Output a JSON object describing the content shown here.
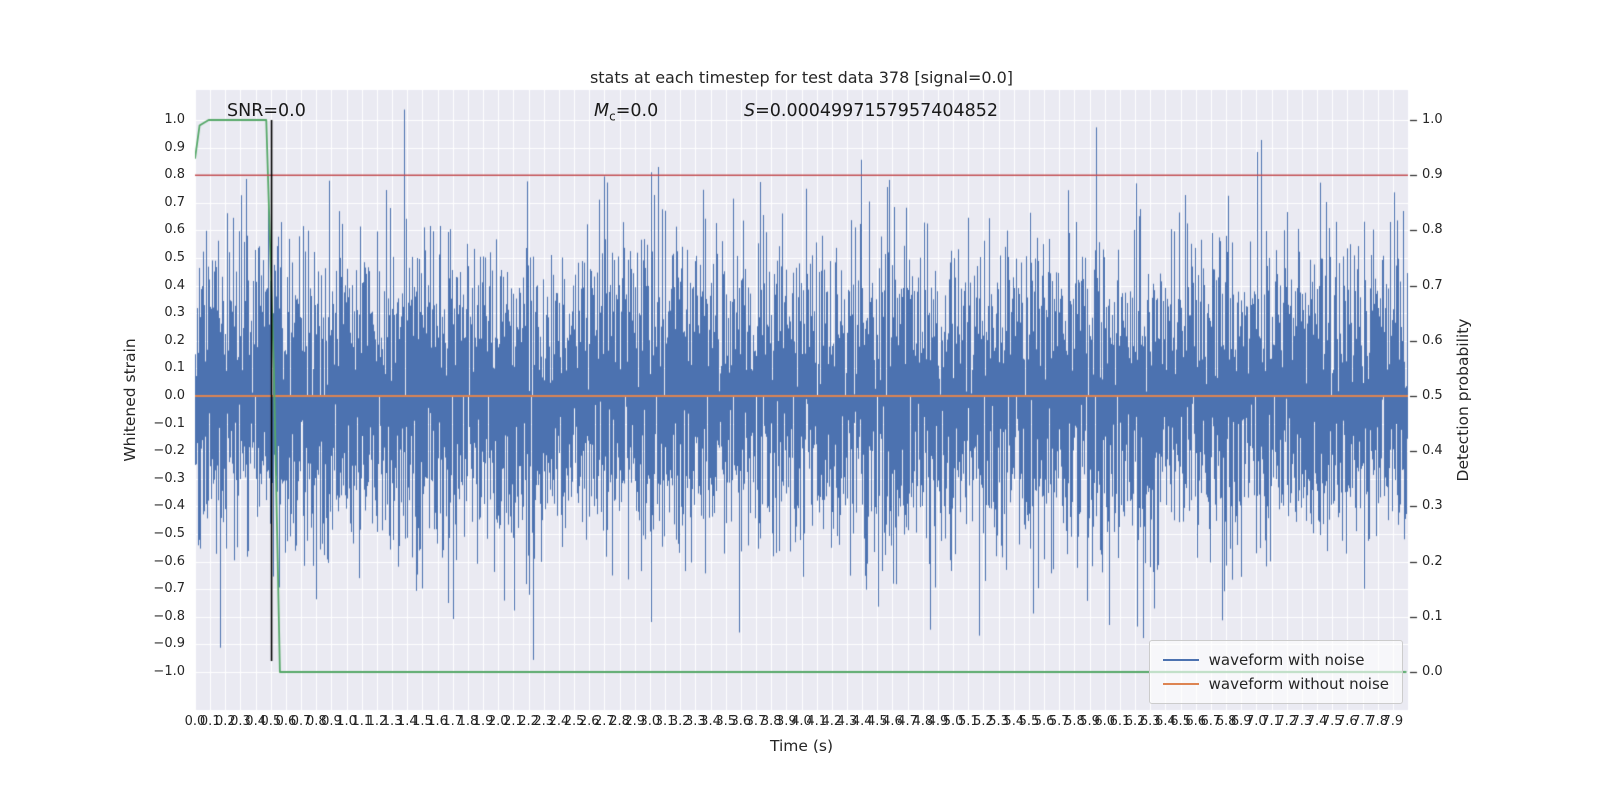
{
  "chart_data": {
    "type": "line",
    "title": "stats at each timestep for test data 378 [signal=0.0]",
    "xlabel": "Time (s)",
    "ylabel_left": "Whitened strain",
    "ylabel_right": "Detection probability",
    "xlim": [
      0.0,
      8.0
    ],
    "ylim_left": [
      -1.13,
      1.11
    ],
    "ylim_right": [
      0.0,
      1.0
    ],
    "grid": true,
    "plot_bg": "#EAEAF2",
    "grid_color": "#FFFFFF",
    "text_color": "#262626",
    "annotations": {
      "snr": "SNR=0.0",
      "mc_var": "M",
      "mc_sub": "c",
      "mc_eq": "=0.0",
      "s_var": "S",
      "s_eq": "=0.0004997157957404852"
    },
    "x_tick_labels": [
      "0.0",
      "0.1",
      "0.2",
      "0.3",
      "0.4",
      "0.5",
      "0.6",
      "0.7",
      "0.8",
      "0.9",
      "1.0",
      "1.1",
      "1.2",
      "1.3",
      "1.4",
      "1.5",
      "1.6",
      "1.7",
      "1.8",
      "1.9",
      "2.0",
      "2.1",
      "2.2",
      "2.3",
      "2.4",
      "2.5",
      "2.6",
      "2.7",
      "2.8",
      "2.9",
      "3.0",
      "3.1",
      "3.2",
      "3.3",
      "3.4",
      "3.5",
      "3.6",
      "3.7",
      "3.8",
      "3.9",
      "4.0",
      "4.1",
      "4.2",
      "4.3",
      "4.4",
      "4.5",
      "4.6",
      "4.7",
      "4.8",
      "4.9",
      "5.0",
      "5.1",
      "5.2",
      "5.3",
      "5.4",
      "5.5",
      "5.6",
      "5.7",
      "5.8",
      "5.9",
      "6.0",
      "6.1",
      "6.2",
      "6.3",
      "6.4",
      "6.5",
      "6.6",
      "6.7",
      "6.8",
      "6.9",
      "7.0",
      "7.1",
      "7.2",
      "7.3",
      "7.4",
      "7.5",
      "7.6",
      "7.7",
      "7.8",
      "7.9"
    ],
    "y_tick_labels_left": [
      "1.0",
      "0.9",
      "0.8",
      "0.7",
      "0.6",
      "0.5",
      "0.4",
      "0.3",
      "0.2",
      "0.1",
      "0.0",
      "−0.1",
      "−0.2",
      "−0.3",
      "−0.4",
      "−0.5",
      "−0.6",
      "−0.7",
      "−0.8",
      "−0.9",
      "−1.0"
    ],
    "y_tick_labels_right": [
      "1.0",
      "0.9",
      "0.8",
      "0.7",
      "0.6",
      "0.5",
      "0.4",
      "0.3",
      "0.2",
      "0.1",
      "0.0"
    ],
    "series": [
      {
        "name": "waveform with noise",
        "kind": "noise",
        "axis": "left",
        "color": "#4C72B0",
        "noise": {
          "seed": 378,
          "std": 0.26,
          "samples_per_column": 6,
          "n_samples": 8192,
          "mean": 0.0
        }
      },
      {
        "name": "waveform without noise",
        "kind": "hline",
        "axis": "left",
        "color": "#DD8452",
        "value": 0.0
      },
      {
        "name": "detection probability",
        "kind": "line",
        "axis": "right",
        "color": "#55A868",
        "points": [
          [
            0.0,
            0.93
          ],
          [
            0.03,
            0.99
          ],
          [
            0.09,
            1.0
          ],
          [
            0.47,
            1.0
          ],
          [
            0.52,
            0.55
          ],
          [
            0.56,
            0.0
          ],
          [
            7.99,
            0.0
          ]
        ]
      },
      {
        "name": "detection threshold",
        "kind": "hline",
        "axis": "right",
        "color": "#C44E52",
        "value": 0.9
      },
      {
        "name": "event time marker",
        "kind": "vline",
        "axis": "left",
        "color": "#000000",
        "x": 0.505,
        "y_from": -0.96,
        "y_to": 1.0
      }
    ],
    "legend": {
      "position": "lower right",
      "items": [
        {
          "label": "waveform with noise",
          "color": "#4C72B0"
        },
        {
          "label": "waveform without noise",
          "color": "#DD8452"
        }
      ]
    }
  }
}
